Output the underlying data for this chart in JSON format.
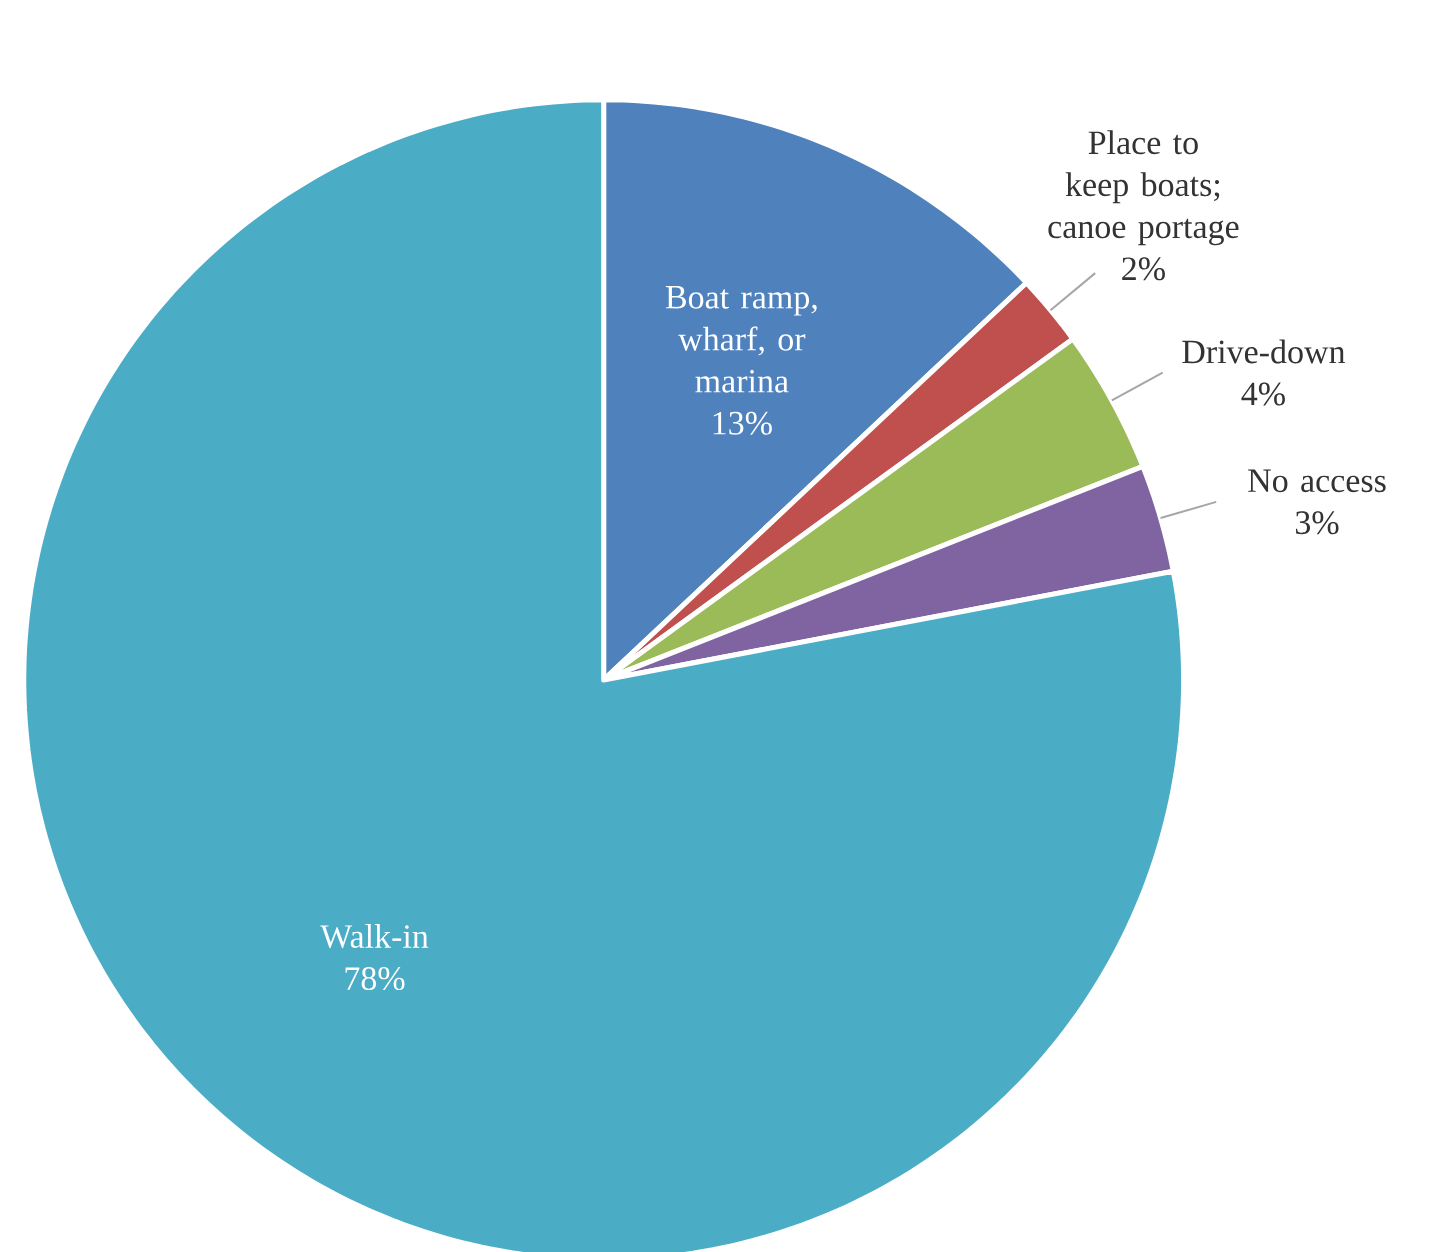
{
  "chart_data": {
    "type": "pie",
    "categories": [
      "Boat ramp, wharf, or marina",
      "Place to keep boats; canoe portage",
      "Drive-down",
      "No access",
      "Walk-in"
    ],
    "values": [
      13,
      2,
      4,
      3,
      78
    ],
    "value_labels": [
      "13%",
      "2%",
      "4%",
      "3%",
      "78%"
    ],
    "colors": [
      "#4f81bd",
      "#c0504d",
      "#9bbb59",
      "#8064a2",
      "#4bacc6"
    ]
  }
}
